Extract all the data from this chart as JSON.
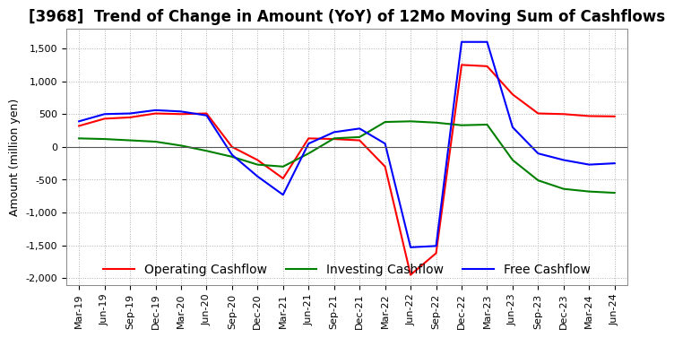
{
  "title": "[3968]  Trend of Change in Amount (YoY) of 12Mo Moving Sum of Cashflows",
  "ylabel": "Amount (million yen)",
  "x_labels": [
    "Mar-19",
    "Jun-19",
    "Sep-19",
    "Dec-19",
    "Mar-20",
    "Jun-20",
    "Sep-20",
    "Dec-20",
    "Mar-21",
    "Jun-21",
    "Sep-21",
    "Dec-21",
    "Mar-22",
    "Jun-22",
    "Sep-22",
    "Dec-22",
    "Mar-23",
    "Jun-23",
    "Sep-23",
    "Dec-23",
    "Mar-24",
    "Jun-24"
  ],
  "operating": [
    320,
    430,
    450,
    510,
    500,
    510,
    0,
    -200,
    -480,
    130,
    120,
    100,
    -300,
    -1950,
    -1620,
    1250,
    1230,
    800,
    510,
    500,
    470,
    465
  ],
  "investing": [
    130,
    120,
    100,
    80,
    20,
    -60,
    -150,
    -270,
    -300,
    -100,
    130,
    150,
    380,
    390,
    370,
    330,
    340,
    -200,
    -510,
    -640,
    -680,
    -700
  ],
  "free": [
    390,
    500,
    510,
    560,
    540,
    480,
    -120,
    -450,
    -730,
    50,
    225,
    280,
    50,
    -1530,
    -1510,
    1600,
    1600,
    300,
    -100,
    -200,
    -270,
    -250
  ],
  "ylim": [
    -2100,
    1800
  ],
  "yticks": [
    -2000,
    -1500,
    -1000,
    -500,
    0,
    500,
    1000,
    1500
  ],
  "colors": {
    "operating": "#ff0000",
    "investing": "#008000",
    "free": "#0000ff"
  },
  "legend_labels": [
    "Operating Cashflow",
    "Investing Cashflow",
    "Free Cashflow"
  ],
  "grid_color": "#b0b0b0",
  "background_color": "#ffffff",
  "title_fontsize": 12,
  "axis_fontsize": 9,
  "tick_fontsize": 8
}
